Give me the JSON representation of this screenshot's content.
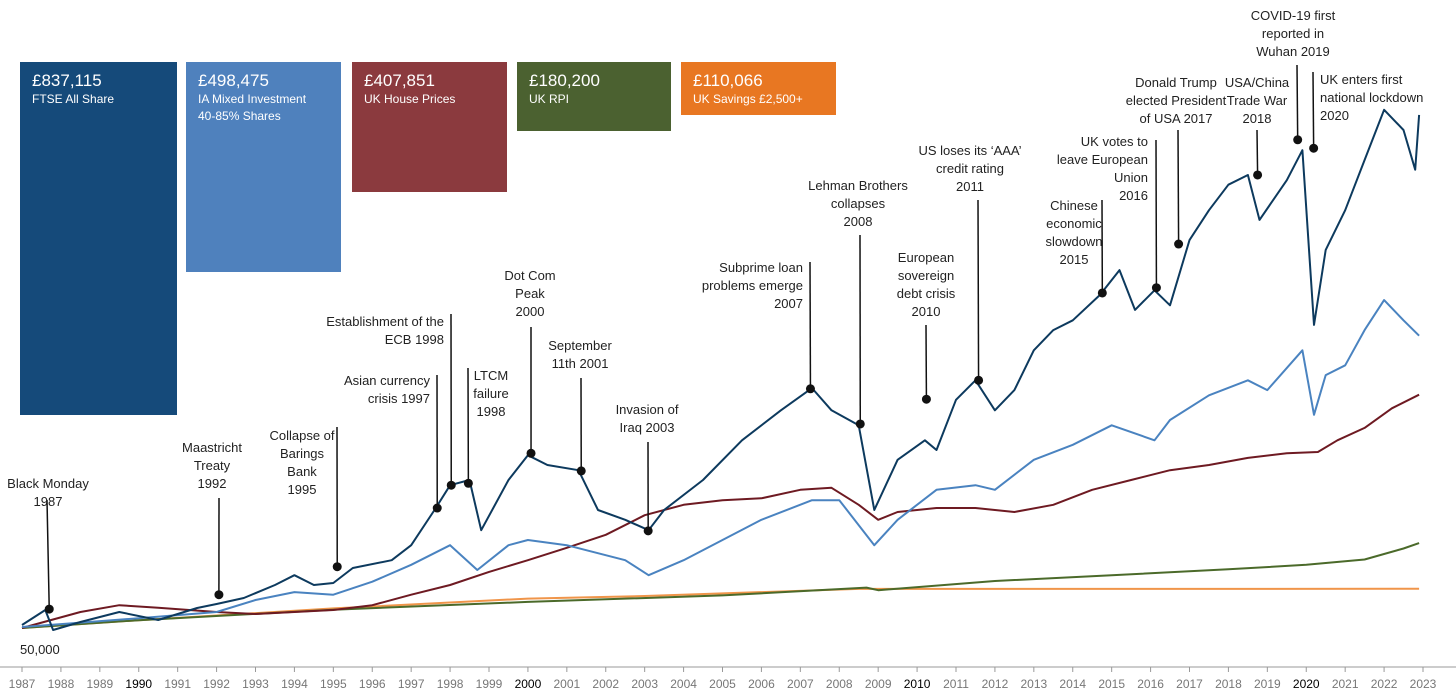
{
  "chart_data": {
    "type": "line",
    "xlim": [
      1987,
      2023
    ],
    "ylim": [
      40000,
      860000
    ],
    "yticks": [
      {
        "value": 50000,
        "label": "50,000"
      }
    ],
    "xticks": [
      1987,
      1988,
      1989,
      1990,
      1991,
      1992,
      1993,
      1994,
      1995,
      1996,
      1997,
      1998,
      1999,
      2000,
      2001,
      2002,
      2003,
      2004,
      2005,
      2006,
      2007,
      2008,
      2009,
      2010,
      2011,
      2012,
      2013,
      2014,
      2015,
      2016,
      2017,
      2018,
      2019,
      2020,
      2021,
      2022,
      2023
    ],
    "series": [
      {
        "name": "FTSE All Share",
        "end_label": "£837,115",
        "color": "#0d3a5e",
        "box_color": "#154a7a",
        "x": [
          1987.0,
          1987.6,
          1987.8,
          1988.5,
          1989.5,
          1990.5,
          1991.5,
          1992.0,
          1992.7,
          1993.5,
          1994.0,
          1994.5,
          1995.0,
          1995.5,
          1996.5,
          1997.0,
          1997.6,
          1998.0,
          1998.5,
          1998.8,
          1999.5,
          2000.0,
          2000.5,
          2001.3,
          2001.8,
          2002.5,
          2003.1,
          2003.5,
          2004.5,
          2005.5,
          2006.5,
          2007.3,
          2007.8,
          2008.5,
          2008.9,
          2009.5,
          2010.2,
          2010.5,
          2011.0,
          2011.5,
          2012.0,
          2012.5,
          2013.0,
          2013.5,
          2014.0,
          2014.7,
          2015.2,
          2015.6,
          2016.1,
          2016.5,
          2017.0,
          2017.5,
          2018.0,
          2018.5,
          2018.8,
          2019.5,
          2019.9,
          2020.2,
          2020.5,
          2021.0,
          2021.5,
          2022.0,
          2022.5,
          2022.8,
          2022.9
        ],
        "values": [
          54600,
          77600,
          46900,
          59200,
          74500,
          62300,
          80700,
          86800,
          96000,
          116000,
          131000,
          116000,
          119000,
          142000,
          154000,
          177000,
          231000,
          269000,
          277000,
          200000,
          277000,
          315000,
          300000,
          292000,
          231000,
          216000,
          200000,
          231000,
          277000,
          338000,
          384000,
          418000,
          384000,
          361000,
          231000,
          308000,
          338000,
          323000,
          400000,
          430000,
          384000,
          415000,
          476000,
          507000,
          522000,
          561000,
          599000,
          538000,
          568000,
          545000,
          645000,
          691000,
          730000,
          745000,
          676000,
          737000,
          783000,
          515000,
          630000,
          691000,
          768000,
          845000,
          814000,
          753000,
          837115
        ]
      },
      {
        "name": "IA Mixed Investment 40-85% Shares",
        "end_label": "£498,475",
        "color": "#4a83c0",
        "box_color": "#4f81bd",
        "x": [
          1987,
          1988,
          1990,
          1992,
          1993,
          1994,
          1995,
          1996,
          1997,
          1998,
          1998.7,
          1999.5,
          2000,
          2001,
          2002.5,
          2003.1,
          2004,
          2005,
          2006,
          2007.3,
          2008,
          2008.9,
          2009.5,
          2010.5,
          2011.5,
          2012,
          2013,
          2014,
          2015,
          2016.1,
          2016.5,
          2017.5,
          2018.5,
          2019,
          2019.9,
          2020.2,
          2020.5,
          2021,
          2021.5,
          2022,
          2022.5,
          2022.9
        ],
        "values": [
          51500,
          56000,
          65000,
          74500,
          93000,
          105000,
          101000,
          121000,
          147000,
          177000,
          139000,
          177000,
          185000,
          177000,
          154000,
          131000,
          154000,
          185000,
          216000,
          246000,
          246000,
          177000,
          216000,
          262000,
          269000,
          262000,
          308000,
          331000,
          361000,
          338000,
          369000,
          407000,
          430000,
          415000,
          476000,
          377000,
          438000,
          453000,
          507000,
          553000,
          522000,
          498475
        ]
      },
      {
        "name": "UK House Prices",
        "end_label": "£407,851",
        "color": "#6e1a22",
        "box_color": "#8b3a3e",
        "x": [
          1987,
          1988.5,
          1989.5,
          1990.5,
          1992,
          1993,
          1995,
          1996,
          1997,
          1998,
          1999,
          2000,
          2001,
          2002,
          2003,
          2004,
          2005,
          2006,
          2007,
          2007.8,
          2008.5,
          2009,
          2009.5,
          2010.5,
          2011.5,
          2012.5,
          2013.5,
          2014.5,
          2015.5,
          2016.5,
          2017.5,
          2018.5,
          2019.5,
          2020.3,
          2020.8,
          2021.5,
          2022.2,
          2022.9
        ],
        "values": [
          50000,
          74500,
          85000,
          81000,
          74500,
          71500,
          77600,
          85000,
          101000,
          116000,
          136000,
          154000,
          173000,
          193000,
          223000,
          239000,
          246000,
          249000,
          262000,
          265000,
          239000,
          216000,
          228000,
          234000,
          234000,
          228000,
          239000,
          262000,
          277000,
          292000,
          300000,
          311000,
          318000,
          320000,
          338000,
          357000,
          387000,
          407851
        ]
      },
      {
        "name": "UK RPI",
        "end_label": "£180,200",
        "color": "#4b6a2a",
        "box_color": "#4b6130",
        "x": [
          1987,
          1990,
          1995,
          2000,
          2005,
          2008.7,
          2009,
          2012,
          2015,
          2018,
          2020,
          2021.5,
          2022.5,
          2022.9
        ],
        "values": [
          50000,
          62000,
          78000,
          90000,
          100000,
          112000,
          108000,
          122000,
          131000,
          140000,
          147000,
          155000,
          172000,
          180200
        ]
      },
      {
        "name": "UK Savings £2,500+",
        "end_label": "£110,066",
        "color": "#f0954a",
        "box_color": "#e87722",
        "x": [
          1987,
          1990,
          1995,
          2000,
          2003,
          2005,
          2008.5,
          2022.9
        ],
        "values": [
          50000,
          62000,
          80000,
          95000,
          99000,
          103000,
          110000,
          110066
        ]
      }
    ],
    "annotations": [
      {
        "text": [
          "Black Monday",
          "1987"
        ],
        "x": 1987.7,
        "y": 79000
      },
      {
        "text": [
          "Maastricht",
          "Treaty",
          "1992"
        ],
        "x": 1992.06,
        "y": 101000
      },
      {
        "text": [
          "Collapse of",
          "Barings",
          "Bank",
          "1995"
        ],
        "x": 1995.1,
        "y": 144000
      },
      {
        "text": [
          "Asian currency",
          "crisis 1997"
        ],
        "x": 1997.67,
        "y": 234000
      },
      {
        "text": [
          "Establishment of the",
          "ECB 1998"
        ],
        "x": 1998.03,
        "y": 269000
      },
      {
        "text": [
          "LTCM",
          "failure",
          "1998"
        ],
        "x": 1998.47,
        "y": 272000
      },
      {
        "text": [
          "Dot Com",
          "Peak",
          "2000"
        ],
        "x": 2000.08,
        "y": 318000
      },
      {
        "text": [
          "September",
          "11th 2001"
        ],
        "x": 2001.37,
        "y": 291000
      },
      {
        "text": [
          "Invasion of",
          "Iraq 2003"
        ],
        "x": 2003.09,
        "y": 199000
      },
      {
        "text": [
          "Subprime loan",
          "problems emerge",
          "2007"
        ],
        "x": 2007.26,
        "y": 417000
      },
      {
        "text": [
          "Lehman Brothers",
          "collapses",
          "2008"
        ],
        "x": 2008.54,
        "y": 363000
      },
      {
        "text": [
          "European",
          "sovereign",
          "debt crisis",
          "2010"
        ],
        "x": 2010.24,
        "y": 401000
      },
      {
        "text": [
          "US loses its ‘AAA’",
          "credit rating",
          "2011"
        ],
        "x": 2011.58,
        "y": 430000
      },
      {
        "text": [
          "Chinese",
          "economic",
          "slowdown",
          "2015"
        ],
        "x": 2014.76,
        "y": 564000
      },
      {
        "text": [
          "UK votes to",
          "leave European",
          "Union",
          "2016"
        ],
        "x": 2016.15,
        "y": 572000
      },
      {
        "text": [
          "Donald Trump",
          "elected President",
          "of USA 2017"
        ],
        "x": 2016.72,
        "y": 639000
      },
      {
        "text": [
          "USA/China",
          "Trade War",
          "2018"
        ],
        "x": 2018.75,
        "y": 745000
      },
      {
        "text": [
          "COVID-19 first",
          "reported in",
          "Wuhan 2019"
        ],
        "x": 2019.78,
        "y": 799000
      },
      {
        "text": [
          "UK enters first",
          "national lockdown",
          "2020"
        ],
        "x": 2020.19,
        "y": 786000
      }
    ]
  }
}
